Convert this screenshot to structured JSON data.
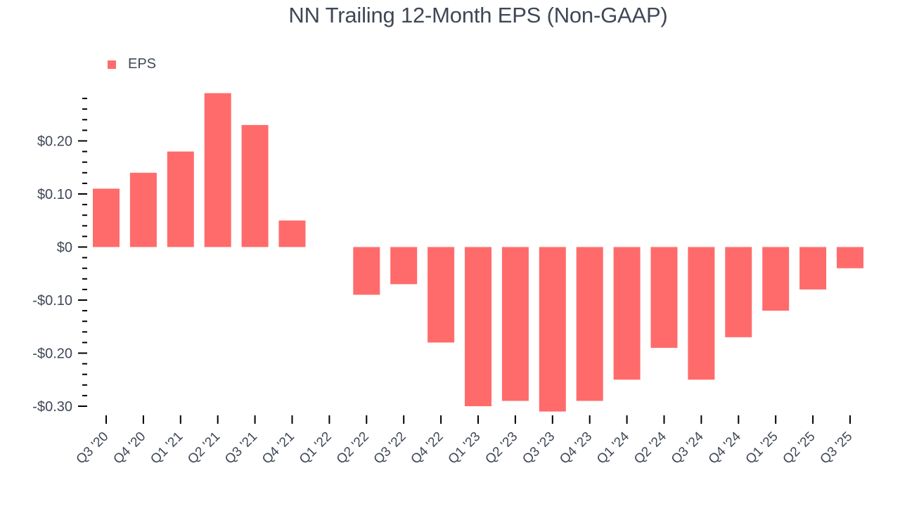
{
  "chart_data": {
    "type": "bar",
    "title": "NN Trailing 12-Month EPS (Non-GAAP)",
    "xlabel": "",
    "ylabel": "",
    "legend": [
      "EPS"
    ],
    "legend_position": "top-left",
    "grid": false,
    "color": "#ff6b6b",
    "categories": [
      "Q3 '20",
      "Q4 '20",
      "Q1 '21",
      "Q2 '21",
      "Q3 '21",
      "Q4 '21",
      "Q1 '22",
      "Q2 '22",
      "Q3 '22",
      "Q4 '22",
      "Q1 '23",
      "Q2 '23",
      "Q3 '23",
      "Q4 '23",
      "Q1 '24",
      "Q2 '24",
      "Q3 '24",
      "Q4 '24",
      "Q1 '25",
      "Q2 '25",
      "Q3 '25"
    ],
    "series": [
      {
        "name": "EPS",
        "values": [
          0.11,
          0.14,
          0.18,
          0.29,
          0.23,
          0.05,
          0.0,
          -0.09,
          -0.07,
          -0.18,
          -0.3,
          -0.29,
          -0.31,
          -0.29,
          -0.25,
          -0.19,
          -0.25,
          -0.17,
          -0.12,
          -0.08,
          -0.04
        ]
      }
    ],
    "ylim": [
      -0.31,
      0.29
    ],
    "yticks": [
      {
        "value": 0.2,
        "label": "$0.20"
      },
      {
        "value": 0.1,
        "label": "$0.10"
      },
      {
        "value": 0.0,
        "label": "$0"
      },
      {
        "value": -0.1,
        "label": "-$0.10"
      },
      {
        "value": -0.2,
        "label": "-$0.20"
      },
      {
        "value": -0.3,
        "label": "-$0.30"
      }
    ],
    "minor_tick_step": 0.02
  },
  "header": {
    "title": "NN Trailing 12-Month EPS (Non-GAAP)"
  },
  "legend": {
    "items": [
      {
        "label": "EPS",
        "color": "#ff6b6b"
      }
    ]
  }
}
